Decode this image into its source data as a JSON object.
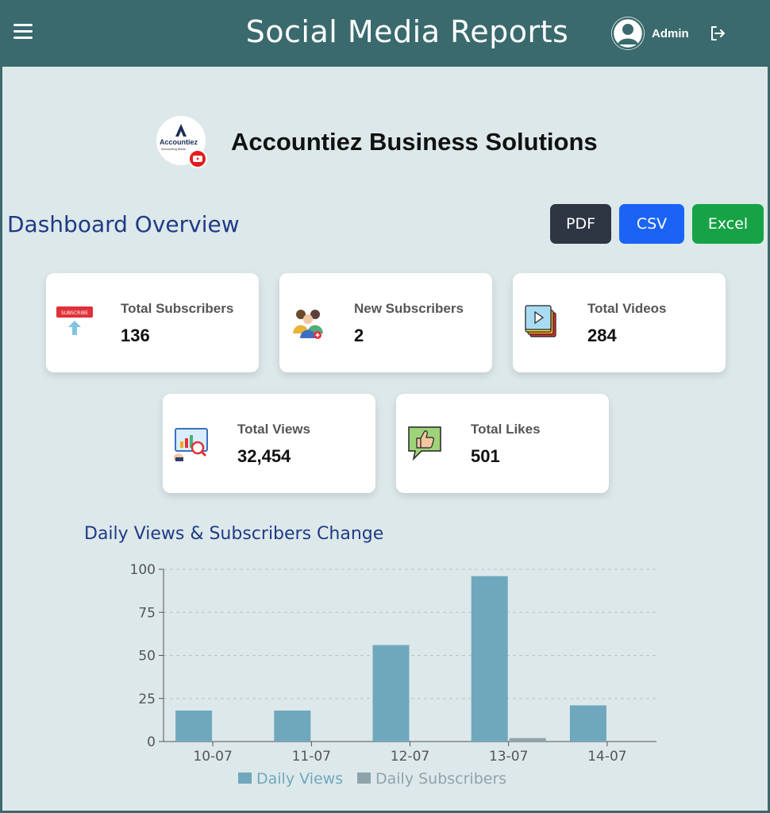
{
  "header": {
    "title": "Social Media Reports",
    "user_label": "Admin"
  },
  "company": {
    "name": "Accountiez Business Solutions",
    "logo_text": "Accountiez",
    "logo_subtext": "Accounting Made"
  },
  "dashboard": {
    "title": "Dashboard Overview",
    "buttons": {
      "pdf": "PDF",
      "csv": "CSV",
      "excel": "Excel"
    }
  },
  "cards": [
    {
      "label": "Total Subscribers",
      "value": "136",
      "icon": "subscribe-icon"
    },
    {
      "label": "New Subscribers",
      "value": "2",
      "icon": "people-icon"
    },
    {
      "label": "Total Videos",
      "value": "284",
      "icon": "video-stack-icon"
    },
    {
      "label": "Total Views",
      "value": "32,454",
      "icon": "analytics-icon"
    },
    {
      "label": "Total Likes",
      "value": "501",
      "icon": "thumbs-up-icon"
    }
  ],
  "chart_section": {
    "title": "Daily Views & Subscribers Change"
  },
  "chart_data": {
    "type": "bar",
    "categories": [
      "10-07",
      "11-07",
      "12-07",
      "13-07",
      "14-07"
    ],
    "series": [
      {
        "name": "Daily Views",
        "values": [
          18,
          18,
          56,
          96,
          21
        ],
        "color": "#6fa8bd"
      },
      {
        "name": "Daily Subscribers",
        "values": [
          0,
          0,
          0,
          2,
          0
        ],
        "color": "#8fa3ab"
      }
    ],
    "yticks": [
      0,
      25,
      50,
      75,
      100
    ],
    "ylim": [
      0,
      100
    ],
    "grid": true,
    "legend": "bottom"
  },
  "colors": {
    "header_bg": "#3a6a6d",
    "page_bg": "#dde8ea",
    "title_blue": "#1f3b86",
    "pdf": "#2e3644",
    "csv": "#1a63f5",
    "excel": "#15a346"
  }
}
